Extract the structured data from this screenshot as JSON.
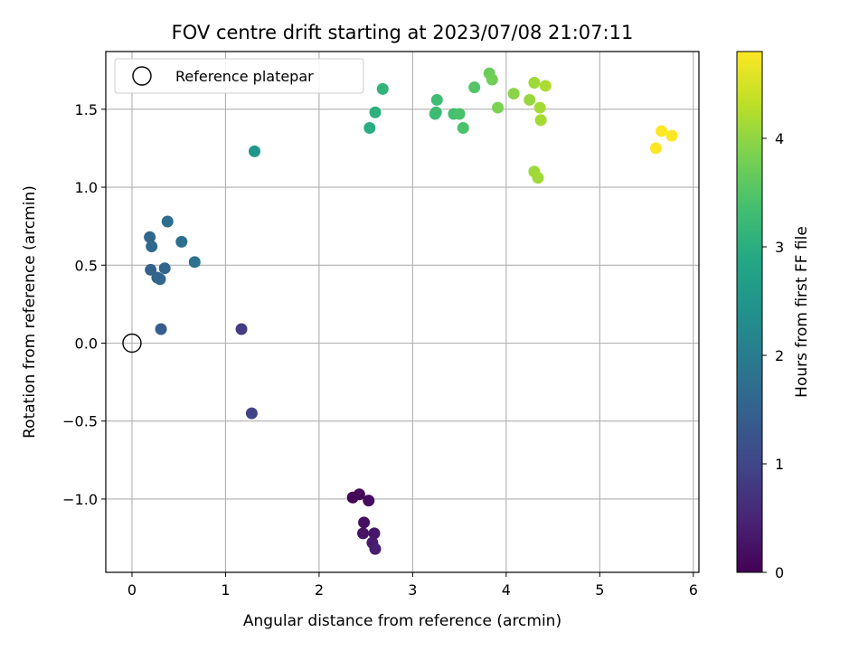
{
  "chart_data": {
    "type": "scatter",
    "title": "FOV centre drift starting at 2023/07/08 21:07:11",
    "xlabel": "Angular distance from reference (arcmin)",
    "ylabel": "Rotation from reference (arcmin)",
    "xlim": [
      -0.28,
      6.06
    ],
    "ylim": [
      -1.47,
      1.87
    ],
    "xticks": [
      0,
      1,
      2,
      3,
      4,
      5,
      6
    ],
    "xtick_labels": [
      "0",
      "1",
      "2",
      "3",
      "4",
      "5",
      "6"
    ],
    "yticks": [
      -1.0,
      -0.5,
      0.0,
      0.5,
      1.0,
      1.5
    ],
    "ytick_labels": [
      "−1.0",
      "−0.5",
      "0.0",
      "0.5",
      "1.0",
      "1.5"
    ],
    "grid": true,
    "legend": {
      "position": "upper-left",
      "entries": [
        "Reference platepar"
      ]
    },
    "reference_point": {
      "label": "Reference platepar",
      "x": 0.0,
      "y": 0.0
    },
    "colorbar": {
      "label": "Hours from first FF file",
      "colormap": "viridis",
      "range": [
        0,
        4.8
      ],
      "ticks": [
        0,
        1,
        2,
        3,
        4
      ],
      "tick_labels": [
        "0",
        "1",
        "2",
        "3",
        "4"
      ]
    },
    "points": [
      {
        "x": 2.36,
        "y": -0.99,
        "t": 0.05
      },
      {
        "x": 2.43,
        "y": -0.97,
        "t": 0.1
      },
      {
        "x": 2.53,
        "y": -1.01,
        "t": 0.15
      },
      {
        "x": 2.48,
        "y": -1.15,
        "t": 0.2
      },
      {
        "x": 2.47,
        "y": -1.22,
        "t": 0.25
      },
      {
        "x": 2.59,
        "y": -1.22,
        "t": 0.3
      },
      {
        "x": 2.57,
        "y": -1.28,
        "t": 0.35
      },
      {
        "x": 2.6,
        "y": -1.32,
        "t": 0.4
      },
      {
        "x": 1.17,
        "y": 0.09,
        "t": 0.85
      },
      {
        "x": 1.28,
        "y": -0.45,
        "t": 0.95
      },
      {
        "x": 0.31,
        "y": 0.09,
        "t": 1.4
      },
      {
        "x": 0.2,
        "y": 0.47,
        "t": 1.5
      },
      {
        "x": 0.27,
        "y": 0.42,
        "t": 1.55
      },
      {
        "x": 0.3,
        "y": 0.41,
        "t": 1.6
      },
      {
        "x": 0.35,
        "y": 0.48,
        "t": 1.6
      },
      {
        "x": 0.19,
        "y": 0.68,
        "t": 1.6
      },
      {
        "x": 0.21,
        "y": 0.62,
        "t": 1.62
      },
      {
        "x": 0.38,
        "y": 0.78,
        "t": 1.7
      },
      {
        "x": 0.53,
        "y": 0.65,
        "t": 1.75
      },
      {
        "x": 0.67,
        "y": 0.52,
        "t": 1.8
      },
      {
        "x": 1.31,
        "y": 1.23,
        "t": 2.5
      },
      {
        "x": 2.54,
        "y": 1.38,
        "t": 3.0
      },
      {
        "x": 2.6,
        "y": 1.48,
        "t": 3.05
      },
      {
        "x": 2.68,
        "y": 1.63,
        "t": 3.1
      },
      {
        "x": 3.24,
        "y": 1.47,
        "t": 3.25
      },
      {
        "x": 3.25,
        "y": 1.48,
        "t": 3.28
      },
      {
        "x": 3.26,
        "y": 1.56,
        "t": 3.3
      },
      {
        "x": 3.44,
        "y": 1.47,
        "t": 3.35
      },
      {
        "x": 3.5,
        "y": 1.47,
        "t": 3.4
      },
      {
        "x": 3.54,
        "y": 1.38,
        "t": 3.4
      },
      {
        "x": 3.66,
        "y": 1.64,
        "t": 3.5
      },
      {
        "x": 3.82,
        "y": 1.73,
        "t": 3.7
      },
      {
        "x": 3.85,
        "y": 1.69,
        "t": 3.75
      },
      {
        "x": 3.91,
        "y": 1.51,
        "t": 3.85
      },
      {
        "x": 4.08,
        "y": 1.6,
        "t": 3.95
      },
      {
        "x": 4.25,
        "y": 1.56,
        "t": 4.05
      },
      {
        "x": 4.3,
        "y": 1.67,
        "t": 4.1
      },
      {
        "x": 4.3,
        "y": 1.1,
        "t": 4.1
      },
      {
        "x": 4.34,
        "y": 1.06,
        "t": 4.12
      },
      {
        "x": 4.36,
        "y": 1.51,
        "t": 4.15
      },
      {
        "x": 4.37,
        "y": 1.43,
        "t": 4.15
      },
      {
        "x": 4.42,
        "y": 1.65,
        "t": 4.2
      },
      {
        "x": 5.6,
        "y": 1.25,
        "t": 4.8
      },
      {
        "x": 5.66,
        "y": 1.36,
        "t": 4.8
      },
      {
        "x": 5.77,
        "y": 1.33,
        "t": 4.8
      }
    ]
  }
}
